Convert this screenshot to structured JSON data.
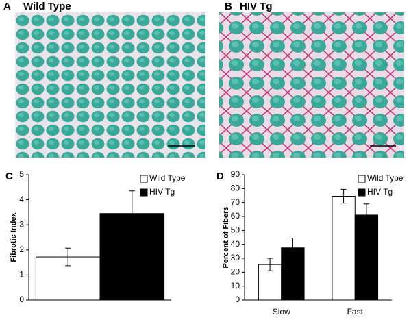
{
  "panels": [
    {
      "letter": "A",
      "title": "Wild Type"
    },
    {
      "letter": "B",
      "title": "HIV Tg"
    }
  ],
  "chart_data": [
    {
      "type": "bar",
      "label": "C",
      "ylabel": "Fibrotic Index",
      "categories": [
        null
      ],
      "series": [
        {
          "name": "Wild Type",
          "color": "#ffffff",
          "values": [
            1.72
          ],
          "errors": [
            0.35
          ]
        },
        {
          "name": "HIV Tg",
          "color": "#000000",
          "values": [
            3.45
          ],
          "errors": [
            0.9
          ]
        }
      ],
      "ylim": [
        0,
        5
      ],
      "yticks": [
        0,
        1,
        2,
        3,
        4,
        5
      ]
    },
    {
      "type": "bar",
      "label": "D",
      "ylabel": "Percent of Fibers",
      "categories": [
        "Slow",
        "Fast"
      ],
      "series": [
        {
          "name": "Wild Type",
          "color": "#ffffff",
          "values": [
            25.5,
            74.5
          ],
          "errors": [
            4.5,
            5
          ]
        },
        {
          "name": "HIV Tg",
          "color": "#000000",
          "values": [
            37.5,
            61
          ],
          "errors": [
            7,
            8
          ]
        }
      ],
      "ylim": [
        0,
        90
      ],
      "yticks": [
        0,
        10,
        20,
        30,
        40,
        50,
        60,
        70,
        80,
        90
      ]
    }
  ]
}
